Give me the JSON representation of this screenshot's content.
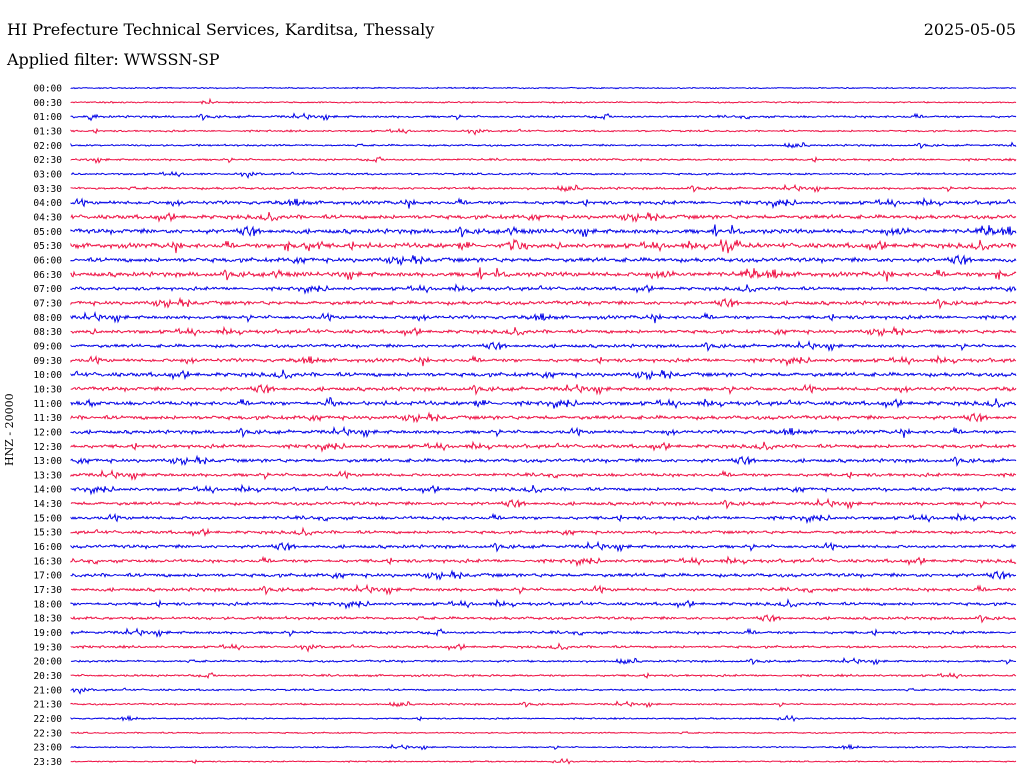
{
  "header": {
    "title": "HI Prefecture Technical Services, Karditsa, Thessaly",
    "date": "2025-05-05",
    "filter": "Applied filter: WWSSN-SP"
  },
  "chart_data": {
    "type": "line",
    "title": "HI Prefecture Technical Services, Karditsa, Thessaly",
    "subtitle": "Applied filter: WWSSN-SP",
    "ylabel": "HNZ - 20000",
    "xlabel": "",
    "tick_labels": [
      "00:00",
      "00:30",
      "01:00",
      "01:30",
      "02:00",
      "02:30",
      "03:00",
      "03:30",
      "04:00",
      "04:30",
      "05:00",
      "05:30",
      "06:00",
      "06:30",
      "07:00",
      "07:30",
      "08:00",
      "08:30",
      "09:00",
      "09:30",
      "10:00",
      "10:30",
      "11:00",
      "11:30",
      "12:00",
      "12:30",
      "13:00",
      "13:30",
      "14:00",
      "14:30",
      "15:00",
      "15:30",
      "16:00",
      "16:30",
      "17:00",
      "17:30",
      "18:00",
      "18:30",
      "19:00",
      "19:30",
      "20:00",
      "20:30",
      "21:00",
      "21:30",
      "22:00",
      "22:30",
      "23:00",
      "23:30"
    ],
    "trace_colors": [
      "#0000e6",
      "#ee1144"
    ],
    "activity_level": [
      0.08,
      0.12,
      0.28,
      0.18,
      0.2,
      0.25,
      0.22,
      0.3,
      0.55,
      0.65,
      0.75,
      0.8,
      0.7,
      0.75,
      0.5,
      0.6,
      0.55,
      0.55,
      0.5,
      0.55,
      0.65,
      0.6,
      0.65,
      0.6,
      0.55,
      0.55,
      0.55,
      0.5,
      0.5,
      0.5,
      0.5,
      0.45,
      0.5,
      0.5,
      0.55,
      0.5,
      0.45,
      0.4,
      0.4,
      0.3,
      0.25,
      0.25,
      0.2,
      0.18,
      0.12,
      0.1,
      0.1,
      0.08
    ],
    "grid": false,
    "legend": "none"
  }
}
